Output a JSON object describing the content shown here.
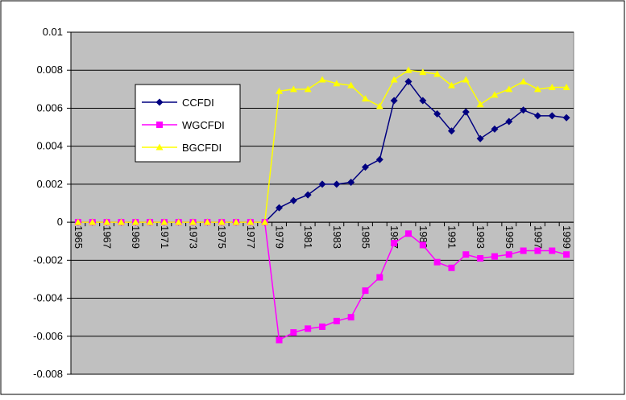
{
  "chart_data": {
    "type": "line",
    "categories": [
      1965,
      null,
      1967,
      null,
      1969,
      null,
      1971,
      null,
      1973,
      null,
      1975,
      null,
      1977,
      null,
      1979,
      null,
      1981,
      null,
      1983,
      null,
      1985,
      null,
      1987,
      null,
      1989,
      null,
      1991,
      null,
      1993,
      null,
      1995,
      null,
      1997,
      null,
      1999
    ],
    "series": [
      {
        "name": "CCFDI",
        "color": "#000080",
        "marker": "diamond",
        "values": [
          0,
          0,
          0,
          0,
          0,
          0,
          0,
          0,
          0,
          0,
          0,
          0,
          0,
          0,
          0.00076,
          0.00114,
          0.00144,
          0.002,
          0.002,
          0.0021,
          0.0029,
          0.0033,
          0.0064,
          0.0074,
          0.0064,
          0.0057,
          0.0048,
          0.0058,
          0.0044,
          0.0049,
          0.0053,
          0.0059,
          0.0056,
          0.0056,
          0.0055
        ]
      },
      {
        "name": "WGCFDI",
        "color": "#ff00ff",
        "marker": "square",
        "values": [
          0,
          0,
          0,
          0,
          0,
          0,
          0,
          0,
          0,
          0,
          0,
          0,
          0,
          0,
          -0.0062,
          -0.0058,
          -0.0056,
          -0.0055,
          -0.0052,
          -0.005,
          -0.0036,
          -0.0029,
          -0.0011,
          -0.0006,
          -0.0012,
          -0.0021,
          -0.0024,
          -0.0017,
          -0.0019,
          -0.0018,
          -0.0017,
          -0.0015,
          -0.0015,
          -0.0015,
          -0.0017
        ]
      },
      {
        "name": "BGCFDI",
        "color": "#ffff00",
        "marker": "triangle",
        "values": [
          0,
          0,
          0,
          0,
          0,
          0,
          0,
          0,
          0,
          0,
          0,
          0,
          0,
          0,
          0.0069,
          0.007,
          0.007,
          0.0075,
          0.0073,
          0.0072,
          0.0065,
          0.0061,
          0.0075,
          0.008,
          0.0079,
          0.0078,
          0.0072,
          0.0075,
          0.0062,
          0.0067,
          0.007,
          0.0074,
          0.007,
          0.0071,
          0.0071
        ]
      }
    ],
    "ylim": [
      -0.008,
      0.01
    ],
    "yticks": [
      -0.008,
      -0.006,
      -0.004,
      -0.002,
      0,
      0.002,
      0.004,
      0.006,
      0.008,
      0.01
    ],
    "grid": true,
    "legend": "upper left",
    "plot_background": "#c0c0c0"
  }
}
